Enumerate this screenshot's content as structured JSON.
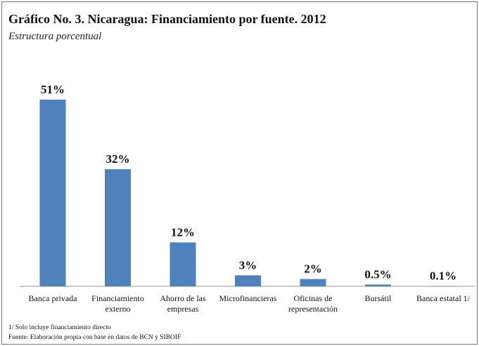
{
  "chart_data": {
    "type": "bar",
    "title": "Gráfico No. 3. Nicaragua: Financiamiento por fuente. 2012",
    "subtitle": "Estructura porcentual",
    "categories": [
      "Banca privada",
      "Financiamiento externo",
      "Ahorro de las empresas",
      "Microfinancieras",
      "Oficinas de representación",
      "Bursátil",
      "Banca estatal 1/"
    ],
    "values": [
      51,
      32,
      12,
      3,
      2,
      0.5,
      0.1
    ],
    "value_labels": [
      "51%",
      "32%",
      "12%",
      "3%",
      "2%",
      "0.5%",
      "0.1%"
    ],
    "color": "#4f81bd",
    "notes": [
      "1/ Solo incluye  financiamiento directo",
      "Fuente: Elaboración propia con base en datos de BCN y SIBOIF"
    ]
  }
}
